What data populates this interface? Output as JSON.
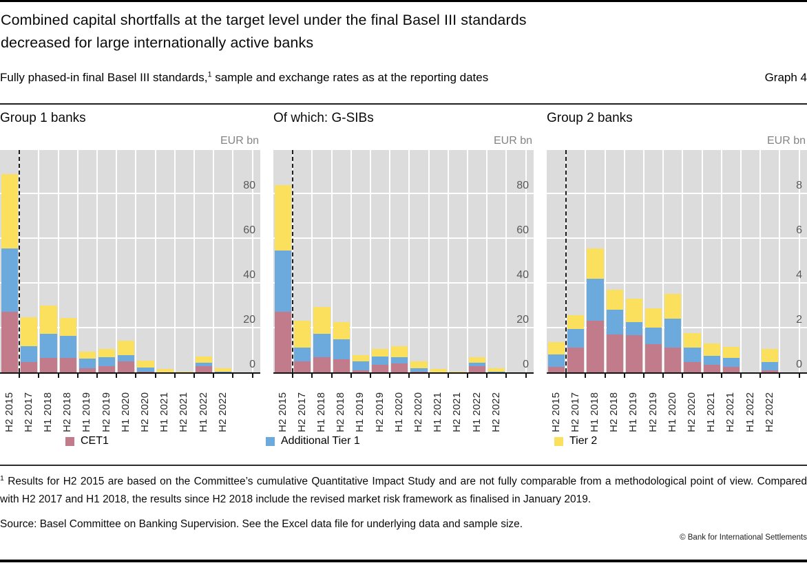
{
  "header": {
    "title_line1": "Combined capital shortfalls at the target level under the final Basel III standards",
    "title_line2": "decreased for large internationally active banks",
    "subtitle_main": "Fully phased-in final Basel III standards,",
    "subtitle_sup": "1",
    "subtitle_rest": " sample and exchange rates as at the reporting dates",
    "graph_label": "Graph 4"
  },
  "chart_data": [
    {
      "type": "bar",
      "stacked": true,
      "title": "Group 1 banks",
      "unit": "EUR bn",
      "categories": [
        "H2 2015",
        "H2 2017",
        "H1 2018",
        "H2 2018",
        "H1 2019",
        "H2 2019",
        "H1 2020",
        "H2 2020",
        "H1 2021",
        "H2 2021",
        "H1 2022",
        "H2 2022"
      ],
      "series": [
        {
          "name": "CET1",
          "color": "#C17B8A",
          "values": [
            27.0,
            4.6,
            6.4,
            6.4,
            2.0,
            2.8,
            4.8,
            0.4,
            0.0,
            0.0,
            2.8,
            0.1
          ]
        },
        {
          "name": "Additional Tier 1",
          "color": "#6CA9DC",
          "values": [
            28.5,
            7.2,
            10.8,
            10.0,
            4.1,
            3.9,
            2.8,
            1.8,
            0.1,
            0.0,
            1.6,
            0.1
          ]
        },
        {
          "name": "Tier 2",
          "color": "#FAE05C",
          "values": [
            33.0,
            12.7,
            12.8,
            7.9,
            3.1,
            3.9,
            6.6,
            3.1,
            1.6,
            0.3,
            2.8,
            1.8
          ]
        }
      ],
      "ylim": [
        0,
        100
      ],
      "yticks": [
        0,
        20,
        40,
        60,
        80
      ],
      "grid": true,
      "dashed_separator_after": "H2 2015"
    },
    {
      "type": "bar",
      "stacked": true,
      "title": "Of which: G-SIBs",
      "unit": "EUR bn",
      "categories": [
        "H2 2015",
        "H2 2017",
        "H1 2018",
        "H2 2018",
        "H1 2019",
        "H2 2019",
        "H1 2020",
        "H2 2020",
        "H1 2021",
        "H2 2021",
        "H1 2022",
        "H2 2022"
      ],
      "series": [
        {
          "name": "CET1",
          "color": "#C17B8A",
          "values": [
            27.0,
            5.0,
            6.7,
            5.7,
            1.0,
            3.3,
            3.9,
            0.3,
            0.0,
            0.0,
            2.8,
            0.1
          ]
        },
        {
          "name": "Additional Tier 1",
          "color": "#6CA9DC",
          "values": [
            27.4,
            6.1,
            10.4,
            9.2,
            4.0,
            3.7,
            2.9,
            1.4,
            0.1,
            0.0,
            1.5,
            0.1
          ]
        },
        {
          "name": "Tier 2",
          "color": "#FAE05C",
          "values": [
            29.4,
            12.0,
            12.1,
            7.5,
            2.7,
            3.6,
            5.0,
            3.2,
            1.3,
            0.2,
            2.5,
            1.7
          ]
        }
      ],
      "ylim": [
        0,
        100
      ],
      "yticks": [
        0,
        20,
        40,
        60,
        80
      ],
      "grid": true,
      "dashed_separator_after": "H2 2015"
    },
    {
      "type": "bar",
      "stacked": true,
      "title": "Group 2 banks",
      "unit": "EUR bn",
      "categories": [
        "H2 2015",
        "H2 2017",
        "H1 2018",
        "H2 2018",
        "H1 2019",
        "H2 2019",
        "H1 2020",
        "H2 2020",
        "H1 2021",
        "H2 2021",
        "H1 2022",
        "H2 2022"
      ],
      "series": [
        {
          "name": "CET1",
          "color": "#C17B8A",
          "values": [
            0.25,
            1.1,
            2.3,
            1.7,
            1.65,
            1.25,
            1.1,
            0.45,
            0.35,
            0.25,
            0.0,
            0.1
          ]
        },
        {
          "name": "Additional Tier 1",
          "color": "#6CA9DC",
          "values": [
            0.55,
            0.85,
            1.9,
            1.1,
            0.6,
            0.75,
            1.3,
            0.65,
            0.4,
            0.4,
            0.0,
            0.35
          ]
        },
        {
          "name": "Tier 2",
          "color": "#FAE05C",
          "values": [
            0.55,
            0.6,
            1.35,
            0.9,
            1.05,
            0.85,
            1.1,
            0.65,
            0.55,
            0.5,
            0.0,
            0.6
          ]
        }
      ],
      "ylim": [
        0,
        10
      ],
      "yticks": [
        0,
        2,
        4,
        6,
        8
      ],
      "grid": true,
      "dashed_separator_after": "H2 2015"
    }
  ],
  "legend": [
    {
      "label": "CET1",
      "color": "#C17B8A"
    },
    {
      "label": "Additional Tier 1",
      "color": "#6CA9DC"
    },
    {
      "label": "Tier 2",
      "color": "#FAE05C"
    }
  ],
  "footnote": {
    "marker": "1",
    "text": "  Results for H2 2015 are based on the Committee’s cumulative Quantitative Impact Study and are not fully comparable from a methodological point of view. Compared with H2 2017 and H1 2018, the results since H2 2018 include the revised market risk framework as finalised in January 2019."
  },
  "source": "Source: Basel Committee on Banking Supervision. See the Excel data file for underlying data and sample size.",
  "copyright": "© Bank for International Settlements"
}
